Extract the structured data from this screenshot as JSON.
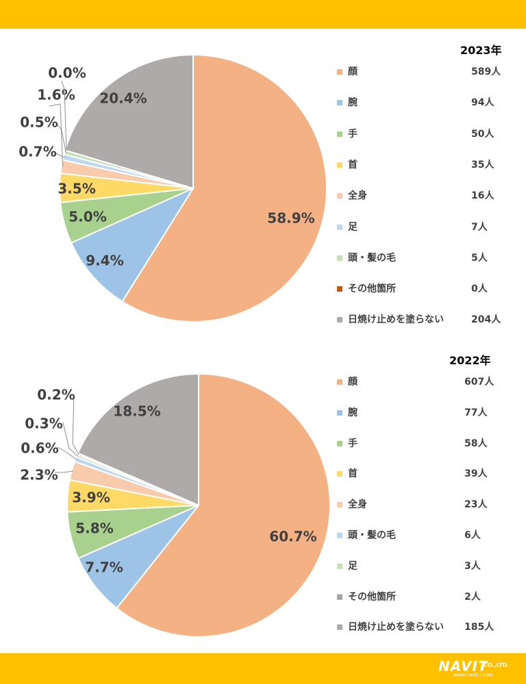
{
  "chart_data": [
    {
      "type": "pie",
      "title": "2023年",
      "unit": "人",
      "slices": [
        {
          "name": "顔",
          "value": 589,
          "percent_label": "58.9%",
          "color": "#f4b183"
        },
        {
          "name": "腕",
          "value": 94,
          "percent_label": "9.4%",
          "color": "#9dc3e6"
        },
        {
          "name": "手",
          "value": 50,
          "percent_label": "5.0%",
          "color": "#a9d18e"
        },
        {
          "name": "首",
          "value": 35,
          "percent_label": "3.5%",
          "color": "#ffd966"
        },
        {
          "name": "全身",
          "value": 16,
          "percent_label": "1.6%",
          "color": "#f8cbad"
        },
        {
          "name": "足",
          "value": 7,
          "percent_label": "0.7%",
          "color": "#bdd7ee"
        },
        {
          "name": "頭・髪の毛",
          "value": 5,
          "percent_label": "0.5%",
          "color": "#c5e0b4"
        },
        {
          "name": "その他箇所",
          "value": 0,
          "percent_label": "0.0%",
          "color": "#c55a11"
        },
        {
          "name": "日焼け止めを塗らない",
          "value": 204,
          "percent_label": "20.4%",
          "color": "#aeaaaa"
        }
      ],
      "legend_values": [
        "589人",
        "94人",
        "50人",
        "35人",
        "16人",
        "7人",
        "5人",
        "0人",
        "204人"
      ],
      "legend": "right"
    },
    {
      "type": "pie",
      "title": "2022年",
      "unit": "人",
      "slices": [
        {
          "name": "顔",
          "value": 607,
          "percent_label": "60.7%",
          "color": "#f4b183"
        },
        {
          "name": "腕",
          "value": 77,
          "percent_label": "7.7%",
          "color": "#9dc3e6"
        },
        {
          "name": "手",
          "value": 58,
          "percent_label": "5.8%",
          "color": "#a9d18e"
        },
        {
          "name": "首",
          "value": 39,
          "percent_label": "3.9%",
          "color": "#ffd966"
        },
        {
          "name": "全身",
          "value": 23,
          "percent_label": "2.3%",
          "color": "#f8cbad"
        },
        {
          "name": "頭・髪の毛",
          "value": 6,
          "percent_label": "0.6%",
          "color": "#bdd7ee"
        },
        {
          "name": "足",
          "value": 3,
          "percent_label": "0.3%",
          "color": "#c5e0b4"
        },
        {
          "name": "その他箇所",
          "value": 2,
          "percent_label": "0.2%",
          "color": "#a5a5a5"
        },
        {
          "name": "日焼け止めを塗らない",
          "value": 185,
          "percent_label": "18.5%",
          "color": "#aeaaaa"
        }
      ],
      "legend_values": [
        "607人",
        "77人",
        "58人",
        "39人",
        "23人",
        "6人",
        "3人",
        "2人",
        "185人"
      ],
      "legend": "right"
    }
  ],
  "branding": {
    "logo": "NAVIT",
    "logo_suffix": "CO.,LTD.",
    "url": "www.navit-j.com"
  },
  "colors": {
    "bar": "#ffc000",
    "text": "#404040"
  }
}
